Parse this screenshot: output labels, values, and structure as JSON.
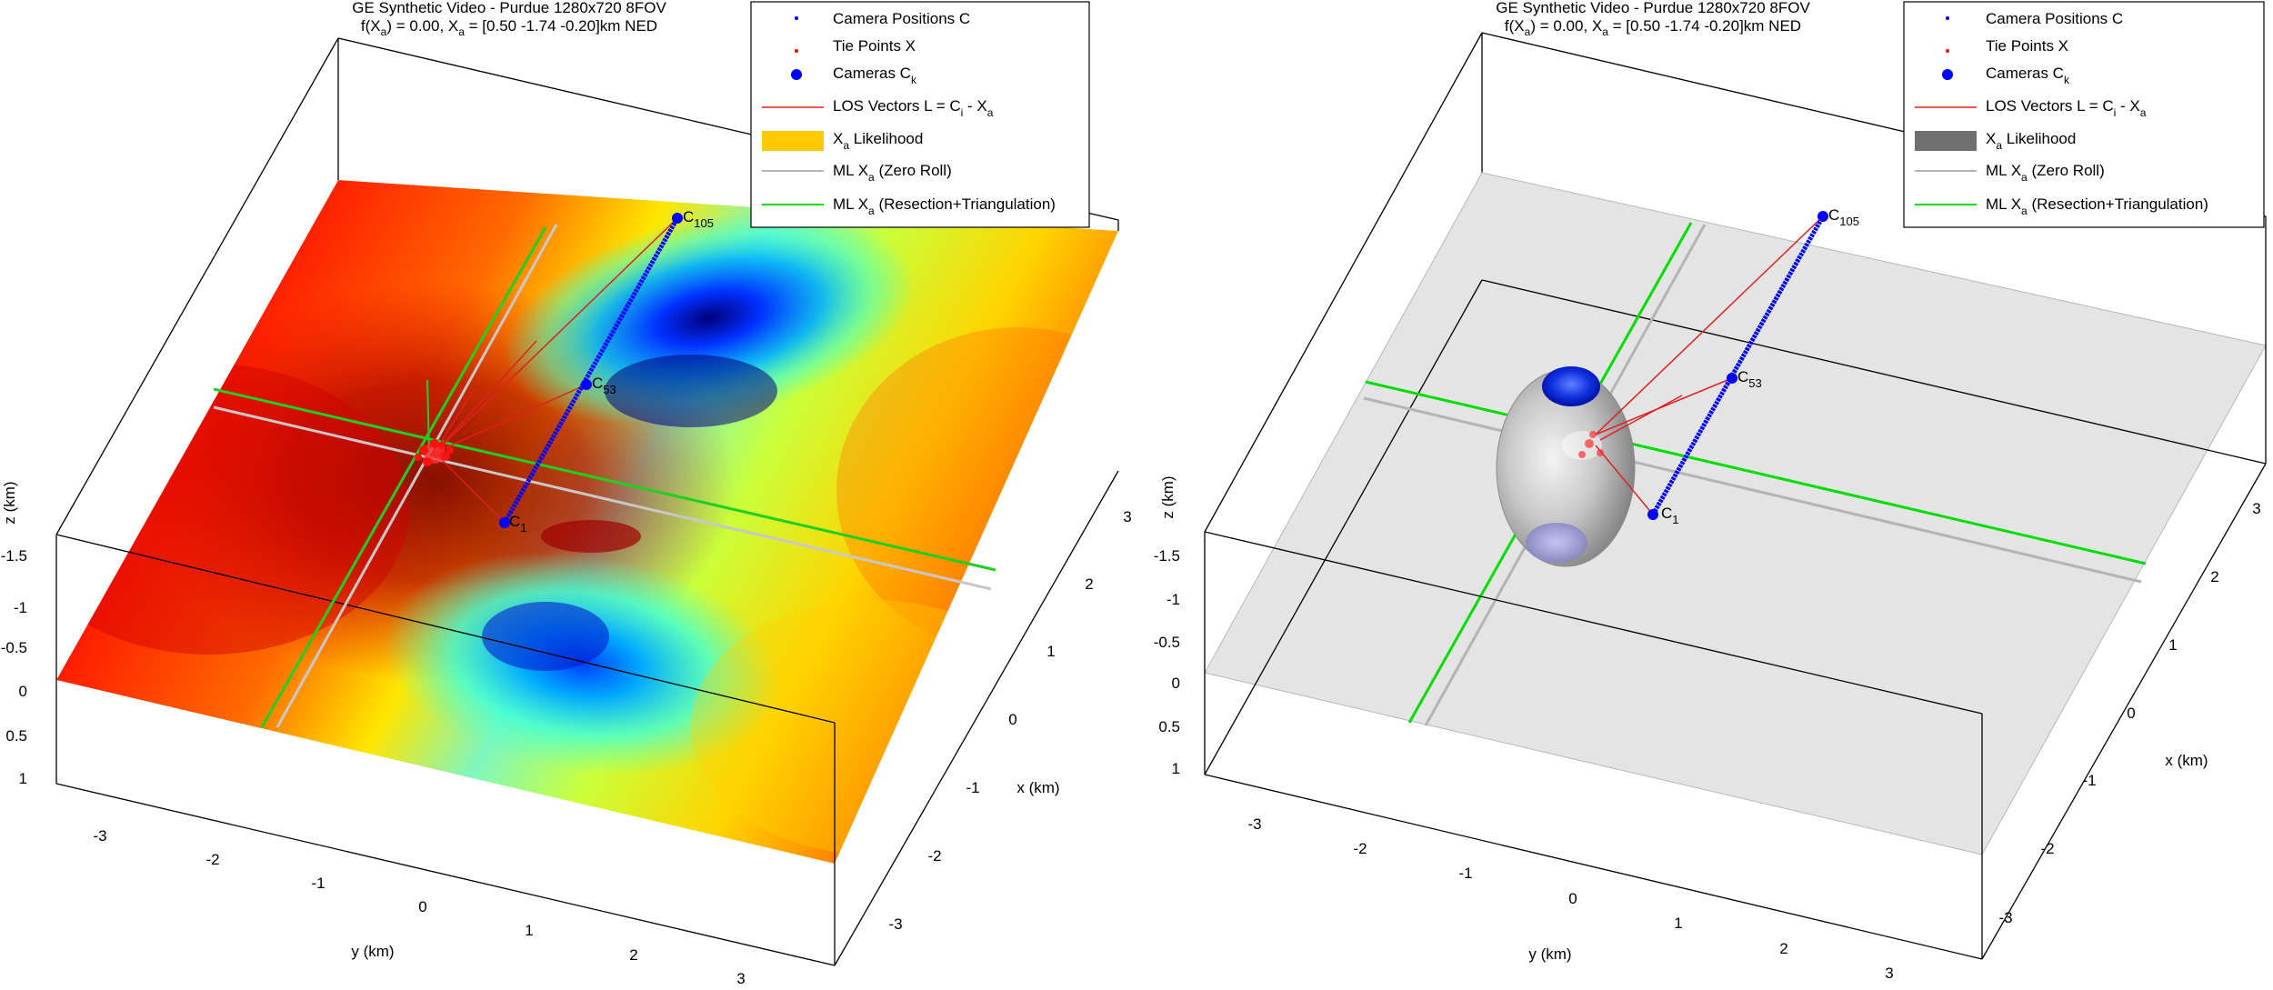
{
  "chart_data": [
    {
      "type": "scatter",
      "panel": "left",
      "surface_style": "jet colormap (red high likelihood near x≈0, y≈-1.5; blue/cyan lows near camera track)",
      "title_line1": "GE Synthetic Video - Purdue 1280x720 8FOV",
      "title_line2_prefix": "f(X",
      "title_line2_sub1": "a",
      "title_line2_mid": ") = 0.00, X",
      "title_line2_sub2": "a",
      "title_line2_suffix": " = [0.50 -1.74 -0.20]km NED",
      "legend": [
        {
          "id": "cam-pos",
          "main": "Camera Positions C",
          "sub": "",
          "tail": "",
          "sub2": "",
          "tail2": "",
          "color": "#0000ff",
          "kind": "dot"
        },
        {
          "id": "tie",
          "main": "Tie Points X",
          "sub": "",
          "tail": "",
          "sub2": "",
          "tail2": "",
          "color": "#ff0000",
          "kind": "dot"
        },
        {
          "id": "camk",
          "main": "Cameras C",
          "sub": "k",
          "tail": "",
          "sub2": "",
          "tail2": "",
          "color": "#0000ff",
          "kind": "bigdot"
        },
        {
          "id": "los",
          "main": "LOS Vectors L = C",
          "sub": "i",
          "tail": " - X",
          "sub2": "a",
          "tail2": "",
          "color": "#ff0000",
          "kind": "line"
        },
        {
          "id": "lik",
          "main": "X",
          "sub": "a",
          "tail": " Likelihood",
          "sub2": "",
          "tail2": "",
          "color": "#ffc800",
          "kind": "patch"
        },
        {
          "id": "mlzero",
          "main": "ML X",
          "sub": "a",
          "tail": " (Zero Roll)",
          "sub2": "",
          "tail2": "",
          "color": "#b4b4b4",
          "kind": "line"
        },
        {
          "id": "mlrt",
          "main": "ML X",
          "sub": "a",
          "tail": " (Resection+Triangulation)",
          "sub2": "",
          "tail2": "",
          "color": "#00dd00",
          "kind": "line"
        }
      ],
      "x_axis_label": "x (km)",
      "y_axis_label": "y (km)",
      "z_axis_label": "z (km)",
      "x_ticks": [
        "3",
        "2",
        "1",
        "0",
        "-1",
        "-2",
        "-3"
      ],
      "y_ticks": [
        "-3",
        "-2",
        "-1",
        "0",
        "1",
        "2",
        "3"
      ],
      "z_ticks": [
        "-1.5",
        "-1",
        "-0.5",
        "0",
        "0.5",
        "1"
      ],
      "cameras": [
        {
          "main": "C",
          "sub": "105"
        },
        {
          "main": "C",
          "sub": "53"
        },
        {
          "main": "C",
          "sub": "1"
        }
      ],
      "ml_xa_km": [
        0.5,
        -1.74,
        -0.2
      ],
      "likelihood": 0.0
    },
    {
      "type": "scatter",
      "panel": "right",
      "surface_style": "gray translucent plane with gray ellipsoid likelihood volume",
      "title_line1": "GE Synthetic Video - Purdue 1280x720 8FOV",
      "title_line2_prefix": "f(X",
      "title_line2_sub1": "a",
      "title_line2_mid": ") = 0.00, X",
      "title_line2_sub2": "a",
      "title_line2_suffix": " = [0.50 -1.74 -0.20]km NED",
      "legend": [
        {
          "id": "cam-pos",
          "main": "Camera Positions C",
          "sub": "",
          "tail": "",
          "sub2": "",
          "tail2": "",
          "color": "#0000ff",
          "kind": "dot"
        },
        {
          "id": "tie",
          "main": "Tie Points X",
          "sub": "",
          "tail": "",
          "sub2": "",
          "tail2": "",
          "color": "#ff0000",
          "kind": "dot"
        },
        {
          "id": "camk",
          "main": "Cameras C",
          "sub": "k",
          "tail": "",
          "sub2": "",
          "tail2": "",
          "color": "#0000ff",
          "kind": "bigdot"
        },
        {
          "id": "los",
          "main": "LOS Vectors L = C",
          "sub": "i",
          "tail": " - X",
          "sub2": "a",
          "tail2": "",
          "color": "#ff0000",
          "kind": "line"
        },
        {
          "id": "lik",
          "main": "X",
          "sub": "a",
          "tail": " Likelihood",
          "sub2": "",
          "tail2": "",
          "color": "#707070",
          "kind": "patch"
        },
        {
          "id": "mlzero",
          "main": "ML X",
          "sub": "a",
          "tail": " (Zero Roll)",
          "sub2": "",
          "tail2": "",
          "color": "#b4b4b4",
          "kind": "line"
        },
        {
          "id": "mlrt",
          "main": "ML X",
          "sub": "a",
          "tail": " (Resection+Triangulation)",
          "sub2": "",
          "tail2": "",
          "color": "#00dd00",
          "kind": "line"
        }
      ],
      "x_axis_label": "x (km)",
      "y_axis_label": "y (km)",
      "z_axis_label": "z (km)",
      "x_ticks": [
        "3",
        "2",
        "1",
        "0",
        "-1",
        "-2",
        "-3"
      ],
      "y_ticks": [
        "-3",
        "-2",
        "-1",
        "0",
        "1",
        "2",
        "3"
      ],
      "z_ticks": [
        "-1.5",
        "-1",
        "-0.5",
        "0",
        "0.5",
        "1"
      ],
      "cameras": [
        {
          "main": "C",
          "sub": "105"
        },
        {
          "main": "C",
          "sub": "53"
        },
        {
          "main": "C",
          "sub": "1"
        }
      ],
      "ml_xa_km": [
        0.5,
        -1.74,
        -0.2
      ],
      "likelihood": 0.0
    }
  ]
}
